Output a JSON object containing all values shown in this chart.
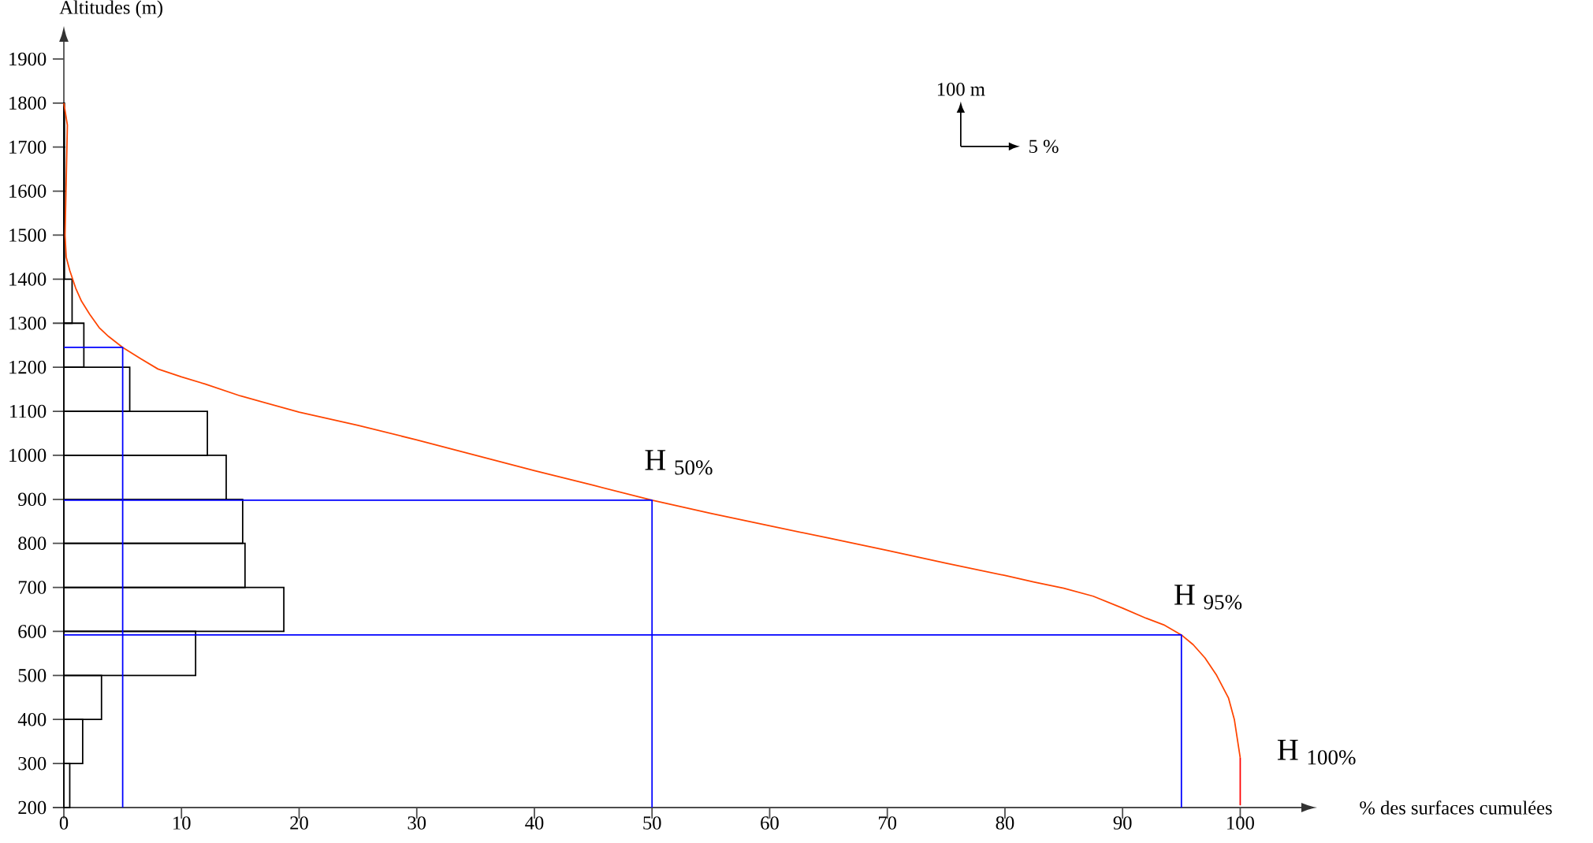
{
  "chart_data": {
    "type": "histogram",
    "orientation": "horizontal",
    "xlabel": "% des surfaces cumulées",
    "ylabel": "Altitudes (m)",
    "xlim": [
      0,
      105.6
    ],
    "ylim": [
      200,
      1950
    ],
    "xticks": [
      0,
      10,
      20,
      30,
      40,
      50,
      60,
      70,
      80,
      90,
      100
    ],
    "yticks": [
      200,
      300,
      400,
      500,
      600,
      700,
      800,
      900,
      1000,
      1100,
      1200,
      1300,
      1400,
      1500,
      1600,
      1700,
      1800,
      1900
    ],
    "marker": "none",
    "line_style": "solid",
    "color": "#000000",
    "bins": [
      200,
      300,
      400,
      500,
      600,
      700,
      800,
      900,
      1000,
      1100,
      1200,
      1300,
      1400,
      1500,
      1600,
      1700,
      1800
    ],
    "values": [
      0.5,
      1.6,
      3.2,
      11.2,
      18.7,
      15.4,
      15.2,
      13.8,
      12.2,
      5.6,
      1.7,
      0.7,
      0.05,
      0.05,
      0.05,
      0.05
    ],
    "series": [
      {
        "type": "line",
        "color": "#ff4500",
        "x": [
          1800,
          1750,
          1700,
          1600,
          1500,
          1450,
          1420,
          1380,
          1350,
          1320,
          1290,
          1270,
          1245,
          1220,
          1196,
          1178,
          1162,
          1135,
          1098,
          1068,
          1035,
          1000,
          965,
          932,
          898,
          868,
          840,
          812,
          784,
          755,
          727,
          712,
          698,
          680,
          653,
          630,
          615,
          592,
          570,
          540,
          500,
          449,
          400,
          313
        ],
        "values": [
          0,
          0.3,
          null,
          null,
          0.1,
          0.2,
          0.5,
          1,
          1.5,
          2.2,
          3,
          3.8,
          5,
          6.5,
          8,
          10,
          12,
          15,
          20,
          25,
          30,
          35,
          40,
          45,
          50,
          55,
          60,
          65,
          70,
          75,
          80,
          82.5,
          85,
          87.5,
          90,
          92,
          93.5,
          95,
          96,
          97,
          98,
          99,
          99.5,
          100
        ]
      },
      {
        "type": "line",
        "color": "#ff0000",
        "x": [
          313,
          205
        ],
        "values": [
          100,
          100
        ]
      },
      {
        "type": "line",
        "color": "#0000ff",
        "x": [
          1245,
          1245,
          200
        ],
        "values": [
          0,
          5,
          5
        ]
      },
      {
        "type": "line",
        "color": "#0000ff",
        "x": [
          898,
          898,
          200
        ],
        "values": [
          0,
          50,
          50
        ]
      },
      {
        "type": "line",
        "color": "#0000ff",
        "x": [
          592,
          592,
          200
        ],
        "values": [
          0,
          95,
          95
        ]
      }
    ],
    "annotations": [
      {
        "text": "H $_{50%}$",
        "x": 50,
        "y": 898
      },
      {
        "text": "H $_{95%}$",
        "x": 95,
        "y": 592
      },
      {
        "text": "H $_{100%}$",
        "x": 100,
        "y": 313
      },
      "100 m",
      "5 %"
    ]
  }
}
